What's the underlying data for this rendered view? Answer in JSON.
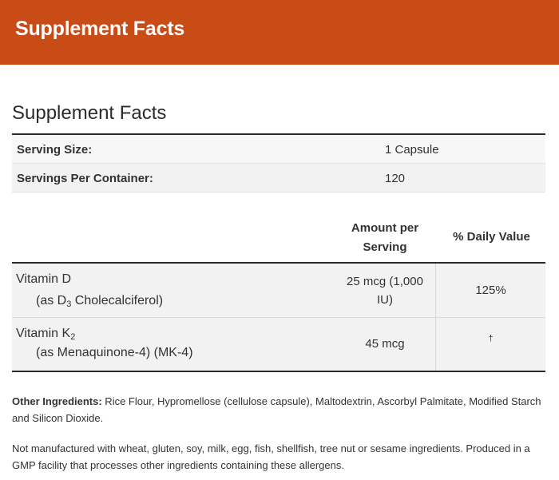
{
  "banner": {
    "title": "Supplement Facts"
  },
  "facts": {
    "title": "Supplement Facts",
    "serving_size_label": "Serving Size:",
    "serving_size_value": "1 Capsule",
    "servings_per_container_label": "Servings Per Container:",
    "servings_per_container_value": "120"
  },
  "table_header": {
    "amount_line1": "Amount per",
    "amount_line2": "Serving",
    "daily_value": "% Daily Value"
  },
  "nutrients": [
    {
      "name_main": "Vitamin D",
      "name_sub_pre": "(as D",
      "name_sub_subscript": "3",
      "name_sub_post": " Cholecalciferol)",
      "amount_line1": "25 mcg (1,000",
      "amount_line2": "IU)",
      "daily_value": "125%"
    },
    {
      "name_main": "Vitamin K",
      "name_main_subscript": "2",
      "name_sub": "(as Menaquinone-4) (MK-4)",
      "amount": "45 mcg",
      "daily_value": "†"
    }
  ],
  "other_ingredients": {
    "label": "Other Ingredients:",
    "text": " Rice Flour, Hypromellose (cellulose capsule), Maltodextrin, Ascorbyl Palmitate, Modified Starch and Silicon Dioxide."
  },
  "allergen_statement": "Not manufactured with wheat, gluten, soy, milk, egg, fish, shellfish, tree nut or sesame ingredients. Produced in a GMP facility that processes other ingredients containing these allergens."
}
